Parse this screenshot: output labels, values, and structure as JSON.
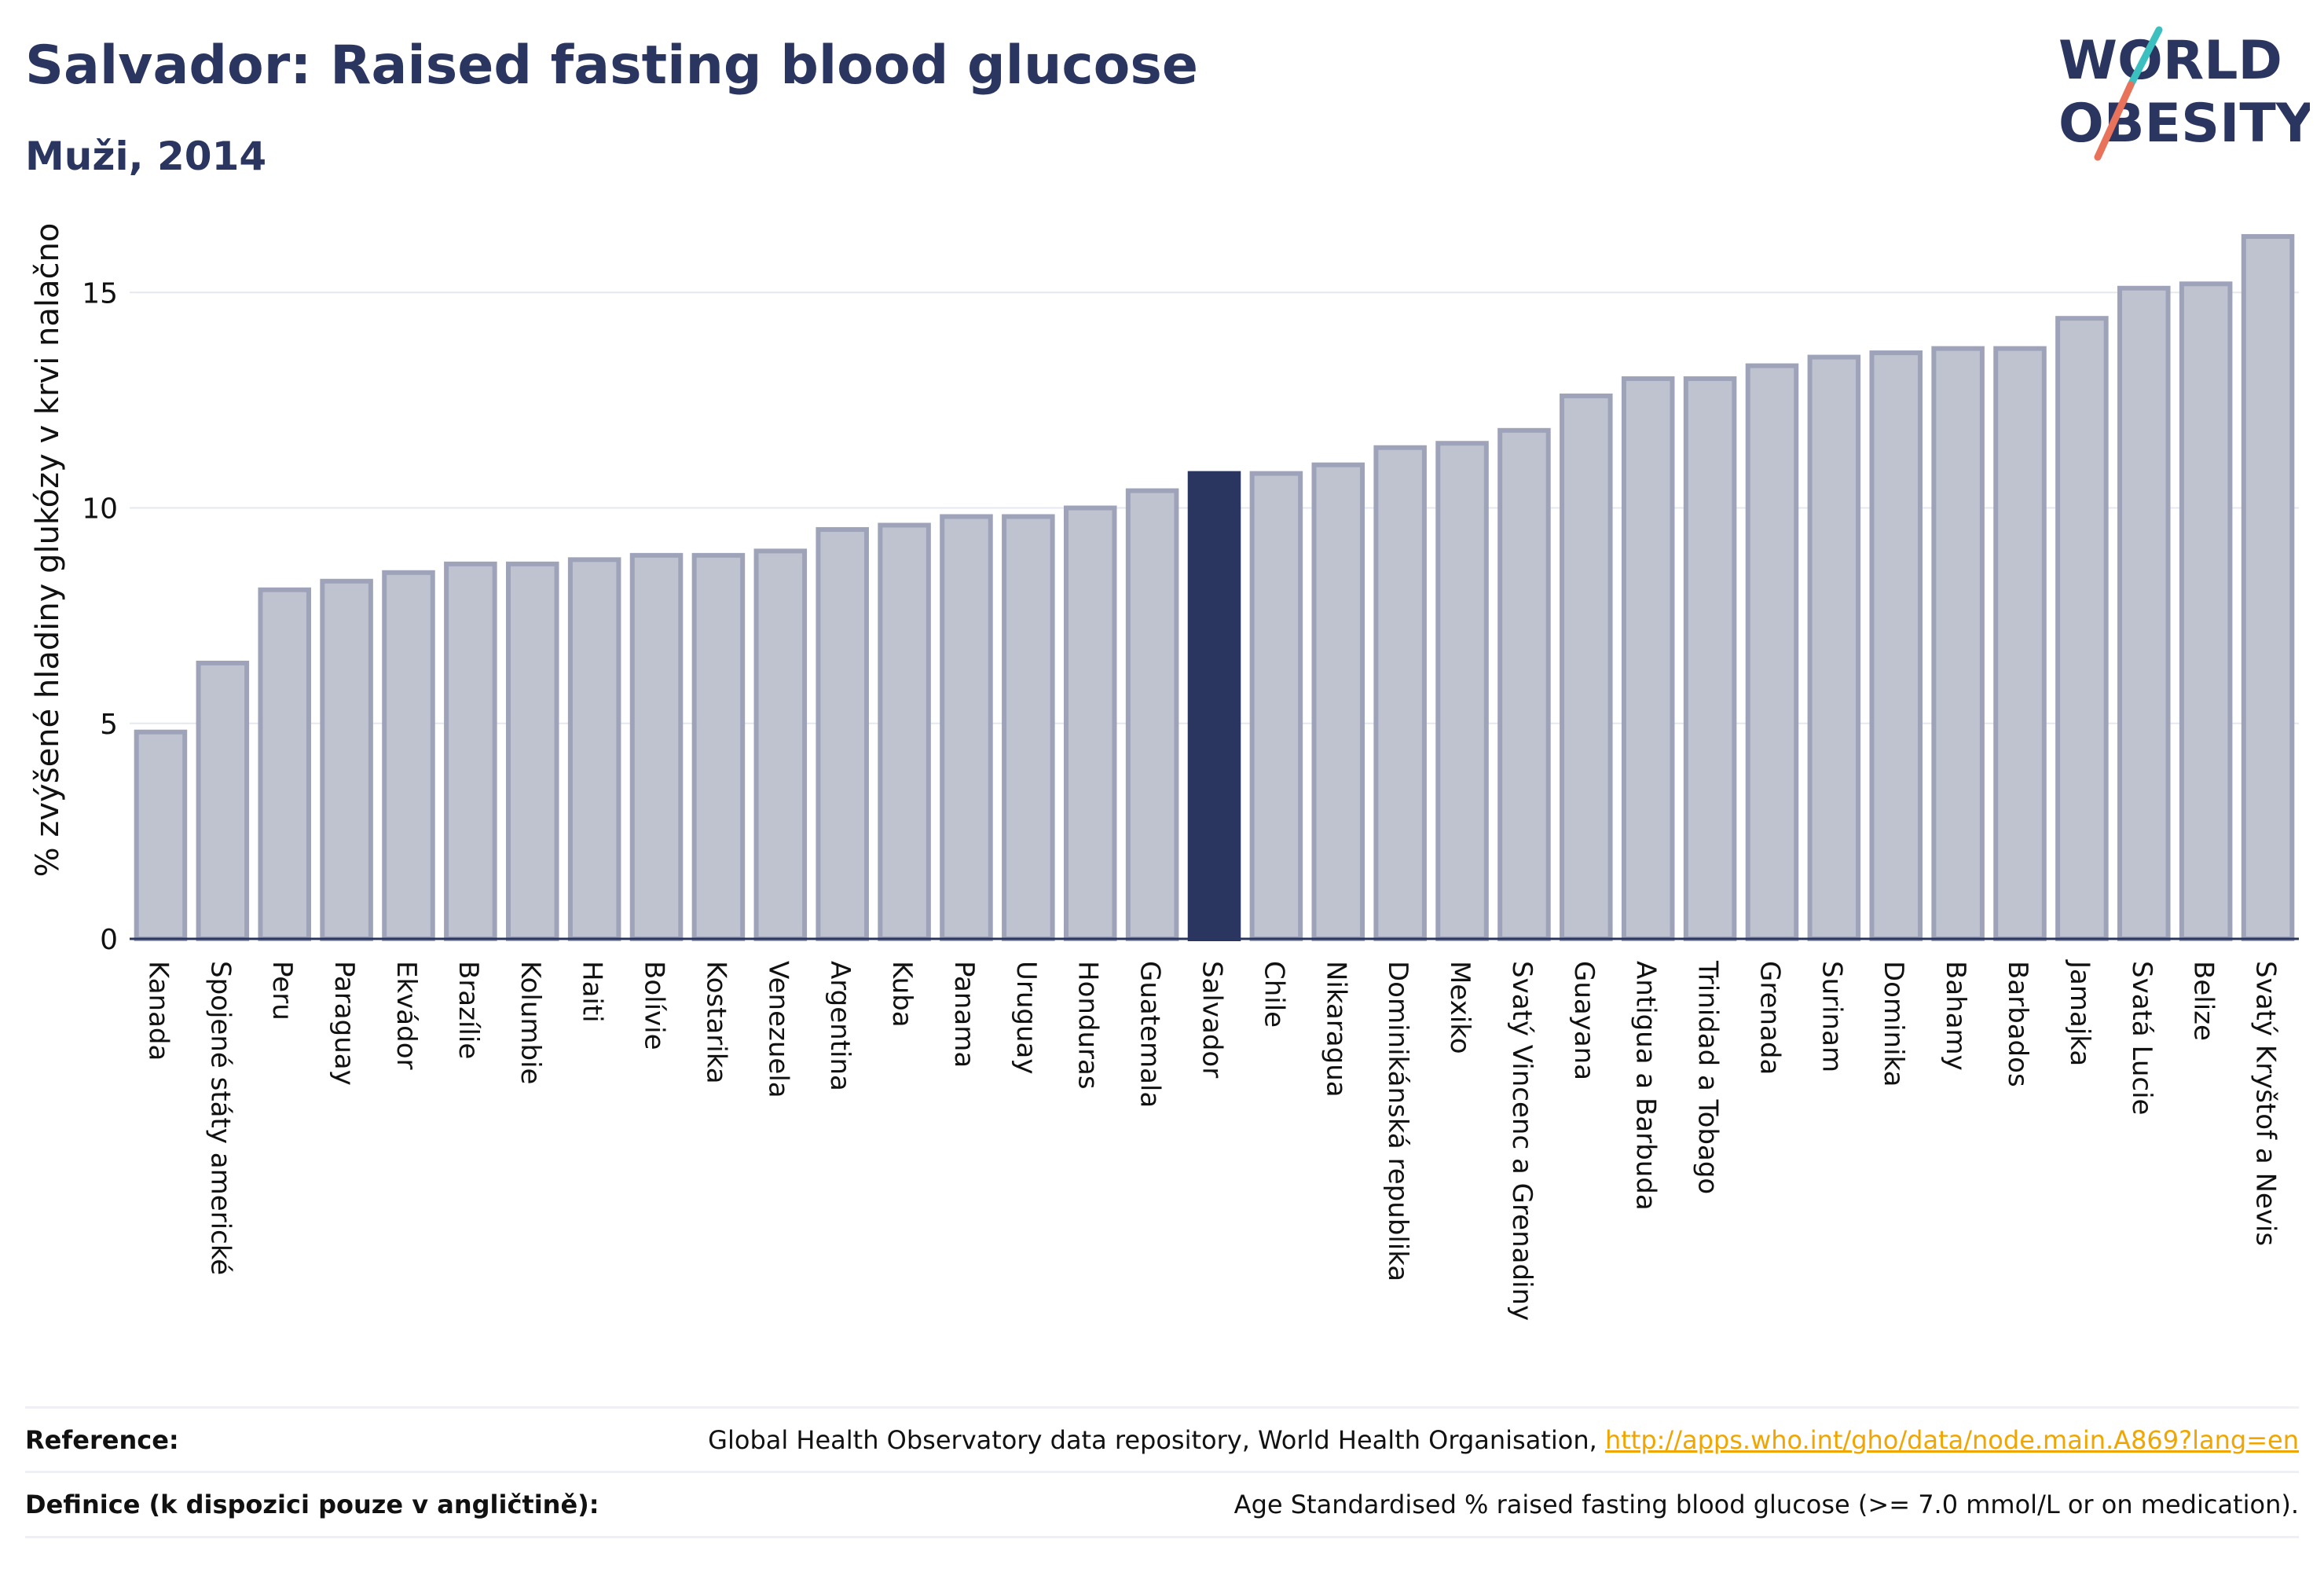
{
  "header": {
    "title": "Salvador: Raised fasting blood glucose",
    "subtitle": "Muži, 2014"
  },
  "logo": {
    "line1": "WORLD",
    "line2": "OBESITY"
  },
  "colors": {
    "bar": "#bfc3d0",
    "bar_border": "#9ea3ba",
    "highlight": "#2a3560",
    "grid": "#e6e8ef",
    "axis": "#2a3560",
    "logo_teal": "#3bbfbf",
    "logo_coral": "#e8735a"
  },
  "chart_data": {
    "type": "bar",
    "ylabel": "% zvýšené hladiny glukózy v krvi nalačno",
    "xlabel": "",
    "ylim": [
      0,
      16.5
    ],
    "yticks": [
      0,
      5,
      10,
      15
    ],
    "grid": true,
    "highlight_category": "Salvador",
    "categories": [
      "Kanada",
      "Spojené státy americké",
      "Peru",
      "Paraguay",
      "Ekvádor",
      "Brazílie",
      "Kolumbie",
      "Haiti",
      "Bolívie",
      "Kostarika",
      "Venezuela",
      "Argentina",
      "Kuba",
      "Panama",
      "Uruguay",
      "Honduras",
      "Guatemala",
      "Salvador",
      "Chile",
      "Nikaragua",
      "Dominikánská republika",
      "Mexiko",
      "Svatý Vincenc a Grenadiny",
      "Guayana",
      "Antigua a Barbuda",
      "Trinidad a Tobago",
      "Grenada",
      "Surinam",
      "Dominika",
      "Bahamy",
      "Barbados",
      "Jamajka",
      "Svatá Lucie",
      "Belize",
      "Svatý Kryštof a Nevis"
    ],
    "values": [
      4.8,
      6.4,
      8.1,
      8.3,
      8.5,
      8.7,
      8.7,
      8.8,
      8.9,
      8.9,
      9.0,
      9.5,
      9.6,
      9.8,
      9.8,
      10.0,
      10.4,
      10.8,
      10.8,
      11.0,
      11.4,
      11.5,
      11.8,
      12.6,
      13.0,
      13.0,
      13.3,
      13.5,
      13.6,
      13.7,
      13.7,
      14.4,
      15.1,
      15.2,
      16.3
    ]
  },
  "footer": {
    "reference_label": "Reference:",
    "reference_text": "Global Health Observatory data repository, World Health Organisation, ",
    "reference_link": "http://apps.who.int/gho/data/node.main.A869?lang=en",
    "definition_label": "Definice (k dispozici pouze v angličtině):",
    "definition_text": "Age Standardised % raised fasting blood glucose (>= 7.0 mmol/L or on medication)."
  }
}
